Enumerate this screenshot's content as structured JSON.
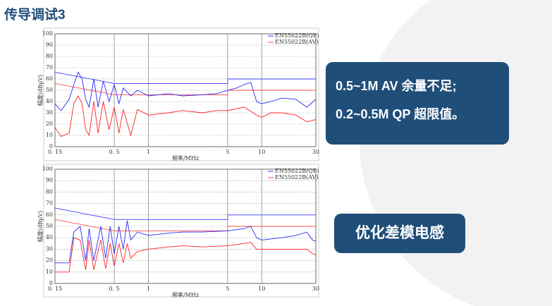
{
  "title": "传导调试3",
  "callouts": [
    "0.5~1M AV 余量不足;",
    "0.2~0.5M QP 超限值。"
  ],
  "button": "优化差模电感",
  "chart_data": [
    {
      "type": "line",
      "xscale": "log",
      "xlabel": "频率/MHz",
      "ylabel": "幅度(dBμV)",
      "xlim": [
        0.15,
        30
      ],
      "ylim": [
        0,
        100
      ],
      "xticks": [
        {
          "value": 0.15,
          "label": "0. 15"
        },
        {
          "value": 0.5,
          "label": "0. 5"
        },
        1,
        5,
        10,
        30
      ],
      "yticks": [
        0,
        10,
        20,
        30,
        40,
        50,
        60,
        70,
        80,
        90,
        100
      ],
      "grid": true,
      "series": [
        {
          "name": "EN55022B(QP)",
          "color": "#3b3bff",
          "x": [
            0.15,
            0.5,
            0.5,
            5,
            5,
            30
          ],
          "values": [
            66,
            56,
            56,
            56,
            60,
            60
          ]
        },
        {
          "name": "EN55022B(AV)",
          "color": "#ff4a4a",
          "x": [
            0.15,
            0.5,
            0.5,
            5,
            5,
            30
          ],
          "values": [
            56,
            46,
            46,
            46,
            50,
            50
          ]
        },
        {
          "color": "#2a2aff",
          "x": [
            0.15,
            0.17,
            0.2,
            0.22,
            0.24,
            0.26,
            0.28,
            0.3,
            0.33,
            0.36,
            0.4,
            0.45,
            0.5,
            0.55,
            0.6,
            0.7,
            0.8,
            1,
            1.5,
            2,
            3,
            4,
            5,
            6,
            7,
            8,
            9,
            10,
            12,
            15,
            20,
            25,
            30
          ],
          "values": [
            38,
            32,
            42,
            55,
            66,
            60,
            42,
            35,
            60,
            35,
            58,
            40,
            55,
            38,
            52,
            45,
            50,
            45,
            47,
            45,
            46,
            47,
            50,
            52,
            55,
            57,
            40,
            38,
            40,
            43,
            42,
            35,
            42
          ]
        },
        {
          "color": "#ff2020",
          "x": [
            0.15,
            0.17,
            0.2,
            0.22,
            0.24,
            0.26,
            0.28,
            0.3,
            0.33,
            0.36,
            0.4,
            0.45,
            0.5,
            0.55,
            0.6,
            0.7,
            0.8,
            1,
            1.5,
            2,
            3,
            4,
            5,
            7,
            9,
            10,
            12,
            15,
            20,
            25,
            30
          ],
          "values": [
            17,
            9,
            12,
            38,
            45,
            38,
            15,
            10,
            40,
            12,
            40,
            15,
            35,
            12,
            33,
            10,
            33,
            28,
            30,
            32,
            30,
            32,
            32,
            35,
            28,
            26,
            30,
            30,
            28,
            22,
            24
          ]
        }
      ]
    },
    {
      "type": "line",
      "xscale": "log",
      "xlabel": "频率/MHz",
      "ylabel": "幅度(dBμV)",
      "xlim": [
        0.15,
        30
      ],
      "ylim": [
        0,
        100
      ],
      "xticks": [
        {
          "value": 0.15,
          "label": "0. 15"
        },
        {
          "value": 0.5,
          "label": "0. 5"
        },
        1,
        5,
        10,
        30
      ],
      "yticks": [
        0,
        10,
        20,
        30,
        40,
        50,
        60,
        70,
        80,
        90,
        100
      ],
      "grid": true,
      "series": [
        {
          "name": "EN55022B(QP)",
          "color": "#3b3bff",
          "x": [
            0.15,
            0.5,
            0.5,
            5,
            5,
            30
          ],
          "values": [
            66,
            56,
            56,
            56,
            60,
            60
          ]
        },
        {
          "name": "EN55022B(AV)",
          "color": "#ff4a4a",
          "x": [
            0.15,
            0.5,
            0.5,
            5,
            5,
            30
          ],
          "values": [
            56,
            46,
            46,
            46,
            50,
            50
          ]
        },
        {
          "color": "#2a2aff",
          "x": [
            0.15,
            0.2,
            0.22,
            0.25,
            0.28,
            0.3,
            0.33,
            0.38,
            0.42,
            0.46,
            0.5,
            0.55,
            0.6,
            0.65,
            0.7,
            0.8,
            1,
            1.5,
            2,
            3,
            5,
            7,
            8,
            9,
            10,
            15,
            20,
            25,
            28,
            30
          ],
          "values": [
            18,
            18,
            45,
            50,
            20,
            48,
            20,
            50,
            22,
            50,
            26,
            50,
            30,
            55,
            38,
            45,
            42,
            44,
            45,
            45,
            46,
            48,
            50,
            40,
            38,
            40,
            42,
            45,
            38,
            37
          ]
        },
        {
          "color": "#ff2020",
          "x": [
            0.15,
            0.2,
            0.22,
            0.25,
            0.28,
            0.3,
            0.33,
            0.38,
            0.42,
            0.46,
            0.5,
            0.55,
            0.6,
            0.65,
            0.7,
            0.8,
            1,
            1.5,
            2,
            3,
            5,
            7,
            8,
            9,
            10,
            15,
            20,
            25,
            28,
            30
          ],
          "values": [
            10,
            10,
            40,
            38,
            12,
            38,
            12,
            38,
            13,
            35,
            15,
            35,
            18,
            35,
            22,
            28,
            30,
            32,
            33,
            32,
            33,
            35,
            36,
            30,
            30,
            30,
            30,
            30,
            26,
            25
          ]
        }
      ]
    }
  ]
}
